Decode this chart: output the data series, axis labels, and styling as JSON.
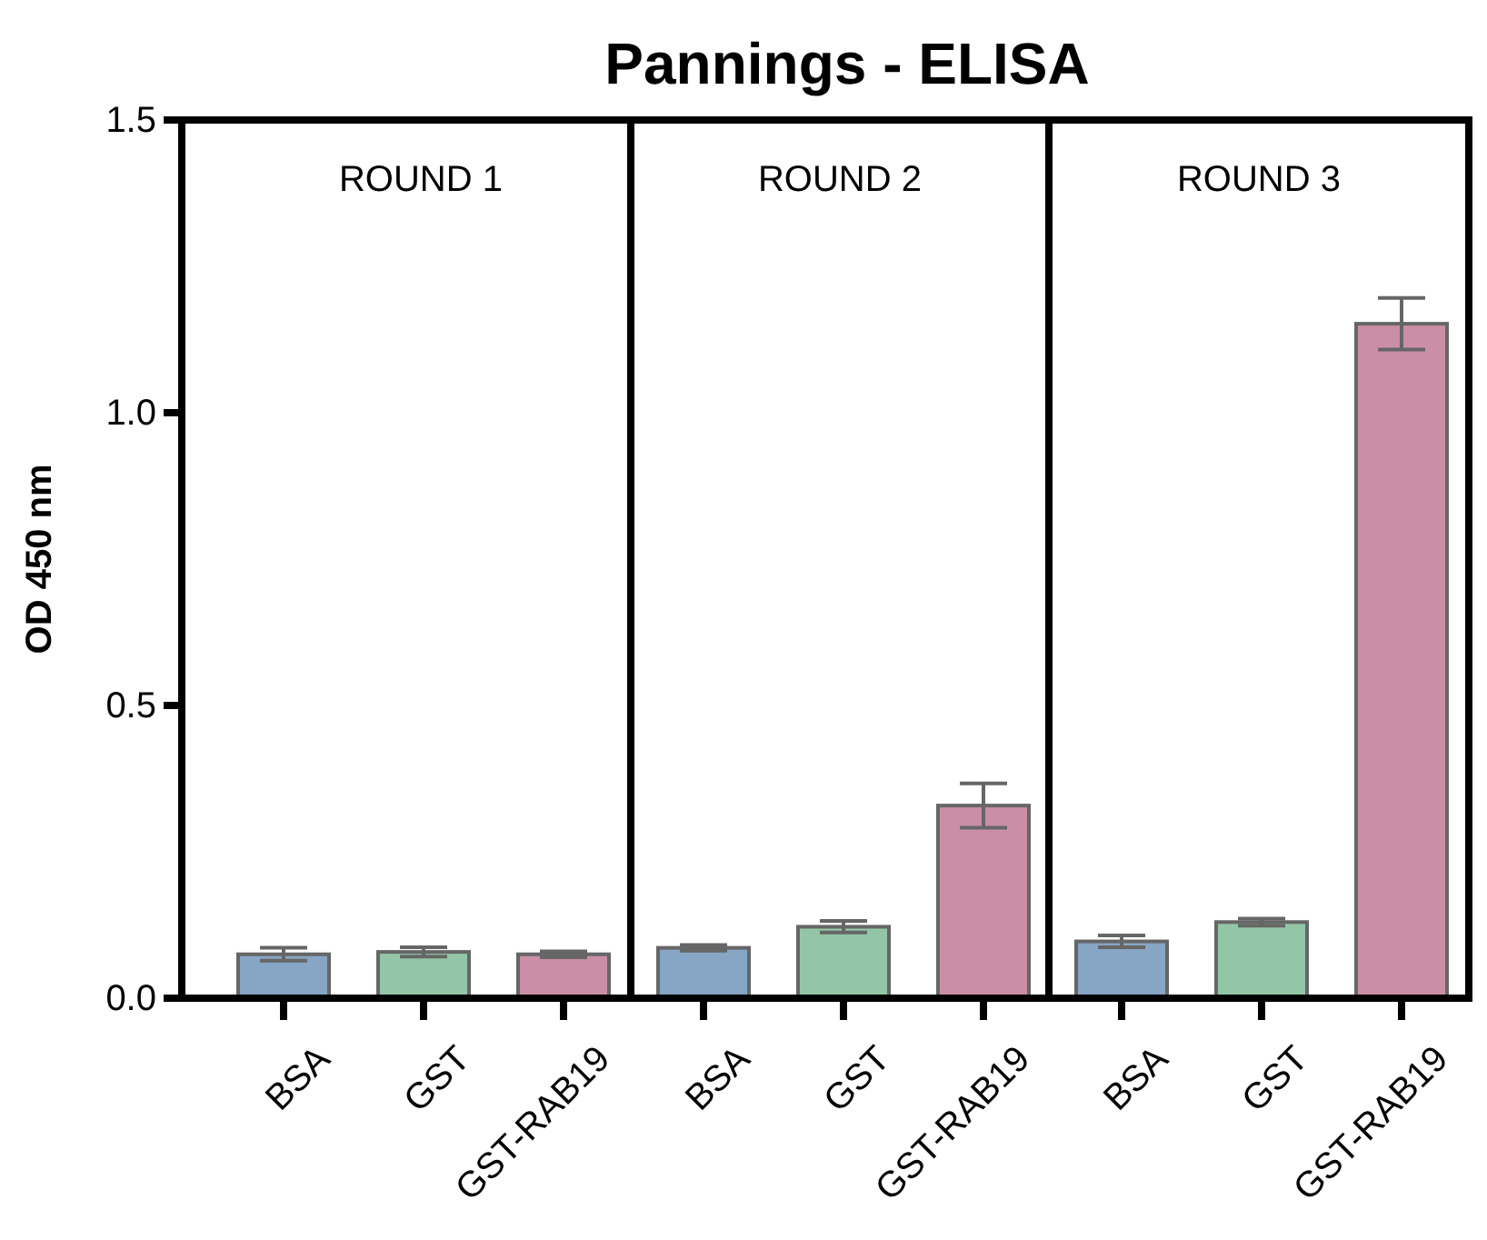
{
  "chart_data": [
    {
      "type": "bar",
      "subtitle": "ROUND 1",
      "ylabel": "OD 450 nm",
      "categories": [
        "BSA",
        "GST",
        "GST-RAB19"
      ],
      "values": [
        0.075,
        0.079,
        0.075
      ],
      "errors": [
        0.011,
        0.008,
        0.005
      ],
      "colors": [
        "#87a5c4",
        "#93c6a6",
        "#cb8ea7"
      ],
      "ylim": [
        0,
        1.5
      ],
      "yticks": [
        {
          "value": 0,
          "label": "0.0"
        },
        0.5,
        {
          "value": 1,
          "label": "1.0"
        },
        1.5
      ],
      "grid": false
    },
    {
      "type": "bar",
      "title": "Pannings - ELISA",
      "subtitle": "ROUND 2",
      "categories": [
        "BSA",
        "GST",
        "GST-RAB19"
      ],
      "values": [
        0.086,
        0.122,
        0.329
      ],
      "errors": [
        0.005,
        0.01,
        0.038
      ],
      "colors": [
        "#87a5c4",
        "#93c6a6",
        "#cb8ea7"
      ],
      "ylim": [
        0,
        1.5
      ],
      "tick_labels": "x",
      "grid": false
    },
    {
      "type": "bar",
      "subtitle": "ROUND 3",
      "categories": [
        "BSA",
        "GST",
        "GST-RAB19"
      ],
      "values": [
        0.097,
        0.13,
        1.152
      ],
      "errors": [
        0.01,
        0.006,
        0.044
      ],
      "colors": [
        "#87a5c4",
        "#93c6a6",
        "#cb8ea7"
      ],
      "ylim": [
        0,
        1.5
      ],
      "tick_labels": "x",
      "grid": false
    }
  ]
}
